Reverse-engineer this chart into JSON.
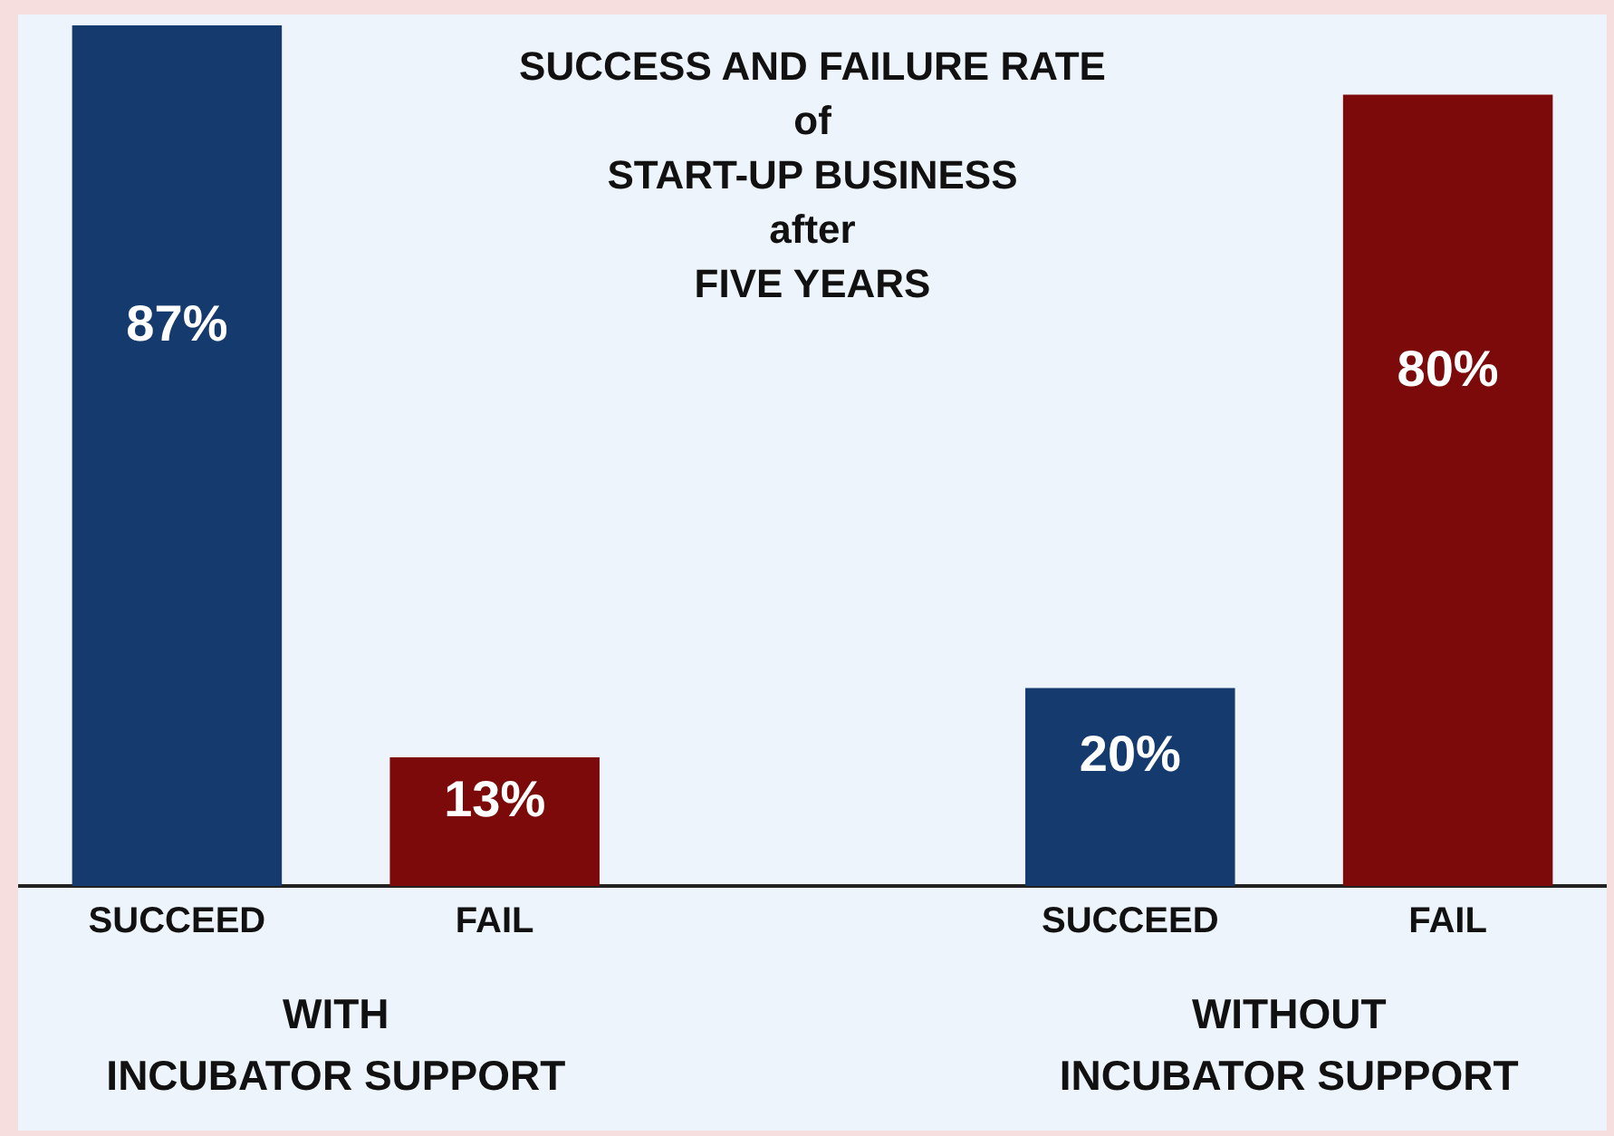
{
  "chart_data": {
    "type": "bar",
    "title": "SUCCESS AND FAILURE RATE\nof\nSTART-UP BUSINESS\nafter\nFIVE YEARS",
    "categories": [
      "SUCCEED",
      "FAIL",
      null,
      "SUCCEED",
      "FAIL"
    ],
    "values": [
      87,
      13,
      null,
      20,
      80
    ],
    "colors": [
      "#143a6e",
      "#7c0a0a",
      null,
      "#143a6e",
      "#7c0a0a"
    ],
    "value_labels": [
      "87%",
      "13%",
      null,
      "20%",
      "80%"
    ],
    "annotations": [
      "WITH\nINCUBATOR SUPPORT",
      "WITHOUT\nINCUBATOR SUPPORT"
    ],
    "grid": false,
    "legend": false
  }
}
